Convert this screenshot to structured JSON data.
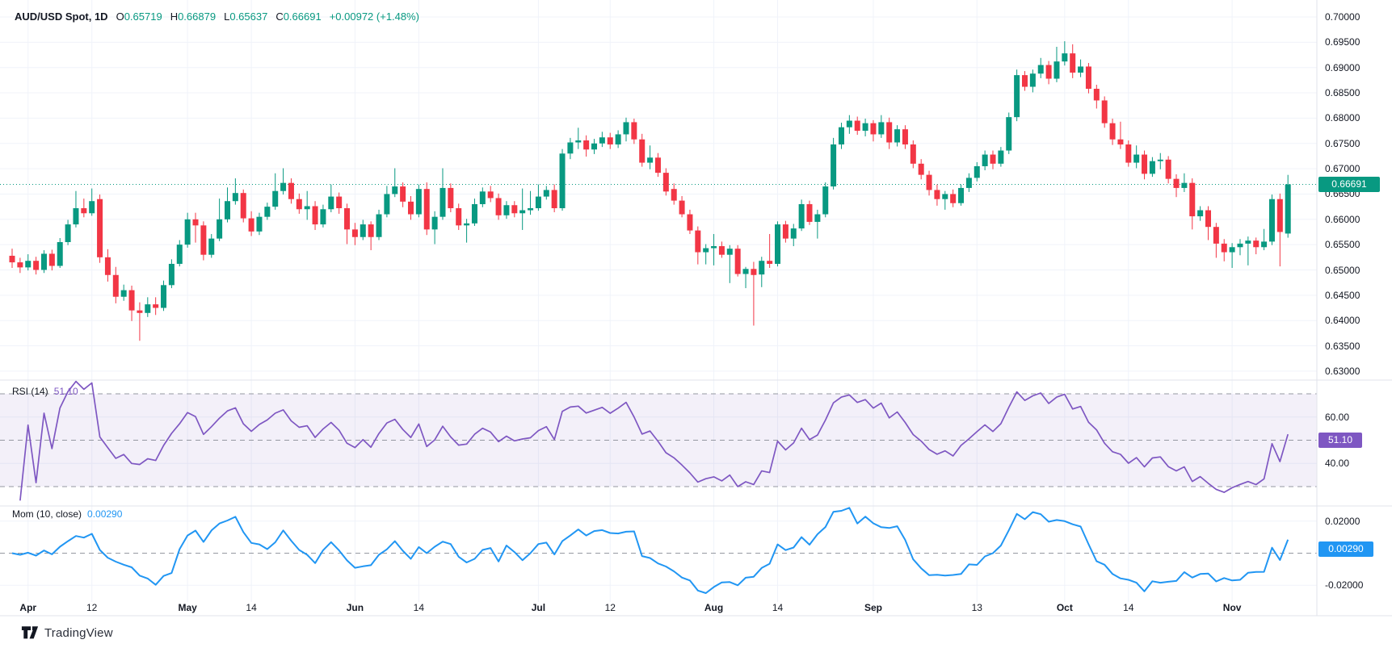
{
  "header": {
    "symbol": "AUD/USD Spot, 1D",
    "o_label": "O",
    "o_value": "0.65719",
    "h_label": "H",
    "h_value": "0.66879",
    "l_label": "L",
    "l_value": "0.65637",
    "c_label": "C",
    "c_value": "0.66691",
    "change": "+0.00972 (+1.48%)"
  },
  "panes": {
    "rsi": {
      "label": "RSI (14)",
      "value": "51.10",
      "badge": "51.10",
      "axis_labels": [
        "60.00",
        "40.00"
      ],
      "axis_values": [
        60,
        40
      ],
      "level_lines": [
        70,
        50,
        30
      ]
    },
    "mom": {
      "label": "Mom (10, close)",
      "value": "0.00290",
      "badge": "0.00290",
      "axis_labels": [
        "0.02000",
        "0.00000",
        "-0.02000"
      ],
      "axis_values": [
        0.02,
        0,
        -0.02
      ],
      "level_lines": [
        0
      ]
    }
  },
  "price_axis": {
    "labels": [
      "0.70000",
      "0.69500",
      "0.69000",
      "0.68500",
      "0.68000",
      "0.67500",
      "0.67000",
      "0.66500",
      "0.66000",
      "0.65500",
      "0.65000",
      "0.64500",
      "0.64000",
      "0.63500",
      "0.63000"
    ],
    "last_price": "0.66691"
  },
  "time_axis": {
    "ticks": [
      {
        "label": "Apr",
        "i": 2,
        "major": true
      },
      {
        "label": "12",
        "i": 10,
        "major": false
      },
      {
        "label": "May",
        "i": 22,
        "major": true
      },
      {
        "label": "14",
        "i": 30,
        "major": false
      },
      {
        "label": "Jun",
        "i": 43,
        "major": true
      },
      {
        "label": "14",
        "i": 51,
        "major": false
      },
      {
        "label": "Jul",
        "i": 66,
        "major": true
      },
      {
        "label": "12",
        "i": 75,
        "major": false
      },
      {
        "label": "Aug",
        "i": 88,
        "major": true
      },
      {
        "label": "14",
        "i": 96,
        "major": false
      },
      {
        "label": "Sep",
        "i": 108,
        "major": true
      },
      {
        "label": "13",
        "i": 121,
        "major": false
      },
      {
        "label": "Oct",
        "i": 132,
        "major": true
      },
      {
        "label": "14",
        "i": 140,
        "major": false
      },
      {
        "label": "Nov",
        "i": 153,
        "major": true
      }
    ]
  },
  "branding": {
    "name": "TradingView"
  },
  "colors": {
    "up": "#089981",
    "down": "#F23645",
    "rsi": "#7E57C2",
    "mom": "#2196F3",
    "last_price": "#089981",
    "text": "#131722",
    "grid": "#f0f3fa",
    "separator": "#e0e3eb",
    "dashed": "#9598a1",
    "rsi_band": "rgba(126,87,194,0.09)"
  },
  "chart_data": {
    "type": "candlestick",
    "title": "AUD/USD Spot, 1D",
    "price_range": [
      0.63,
      0.7
    ],
    "grid_step": 0.005,
    "last_close": 0.66691,
    "indicators": [
      {
        "name": "RSI",
        "period": 14,
        "last": 51.1,
        "levels": [
          70,
          50,
          30
        ],
        "range": [
          30,
          70
        ]
      },
      {
        "name": "Momentum",
        "period": 10,
        "source": "close",
        "last": 0.0029,
        "range": [
          -0.02,
          0.02
        ]
      }
    ],
    "candles": [
      [
        0.6528,
        0.6542,
        0.6504,
        0.6515
      ],
      [
        0.6515,
        0.6524,
        0.6494,
        0.6505
      ],
      [
        0.6505,
        0.6531,
        0.6499,
        0.6518
      ],
      [
        0.6518,
        0.6526,
        0.6491,
        0.65
      ],
      [
        0.65,
        0.6539,
        0.6494,
        0.6532
      ],
      [
        0.6532,
        0.654,
        0.6499,
        0.6508
      ],
      [
        0.6508,
        0.6563,
        0.6504,
        0.6555
      ],
      [
        0.6555,
        0.6599,
        0.6549,
        0.659
      ],
      [
        0.659,
        0.6656,
        0.6584,
        0.6622
      ],
      [
        0.6622,
        0.6641,
        0.6604,
        0.6612
      ],
      [
        0.6612,
        0.6661,
        0.6607,
        0.6636
      ],
      [
        0.664,
        0.6649,
        0.6514,
        0.6525
      ],
      [
        0.6525,
        0.6541,
        0.6477,
        0.649
      ],
      [
        0.649,
        0.6506,
        0.6434,
        0.6447
      ],
      [
        0.6447,
        0.6471,
        0.6439,
        0.646
      ],
      [
        0.646,
        0.6469,
        0.6399,
        0.642
      ],
      [
        0.642,
        0.6436,
        0.636,
        0.6415
      ],
      [
        0.6415,
        0.6446,
        0.6407,
        0.6432
      ],
      [
        0.6432,
        0.6446,
        0.6411,
        0.6425
      ],
      [
        0.6425,
        0.6479,
        0.6419,
        0.647
      ],
      [
        0.647,
        0.6521,
        0.6464,
        0.6512
      ],
      [
        0.6512,
        0.6559,
        0.6507,
        0.655
      ],
      [
        0.655,
        0.6613,
        0.6544,
        0.66
      ],
      [
        0.66,
        0.6613,
        0.6554,
        0.6588
      ],
      [
        0.6588,
        0.6596,
        0.6519,
        0.653
      ],
      [
        0.653,
        0.6571,
        0.6524,
        0.6562
      ],
      [
        0.6562,
        0.6641,
        0.6557,
        0.66
      ],
      [
        0.66,
        0.6663,
        0.6594,
        0.6636
      ],
      [
        0.6636,
        0.6681,
        0.6629,
        0.6652
      ],
      [
        0.6652,
        0.6659,
        0.6594,
        0.6602
      ],
      [
        0.6602,
        0.6616,
        0.6567,
        0.6576
      ],
      [
        0.6576,
        0.6613,
        0.6569,
        0.6605
      ],
      [
        0.6605,
        0.6633,
        0.6599,
        0.6625
      ],
      [
        0.6625,
        0.6691,
        0.6619,
        0.6656
      ],
      [
        0.6656,
        0.6701,
        0.6649,
        0.6672
      ],
      [
        0.6672,
        0.6681,
        0.6631,
        0.664
      ],
      [
        0.664,
        0.6651,
        0.6611,
        0.662
      ],
      [
        0.662,
        0.6656,
        0.6599,
        0.6626
      ],
      [
        0.6626,
        0.6636,
        0.6579,
        0.659
      ],
      [
        0.659,
        0.6629,
        0.6584,
        0.662
      ],
      [
        0.662,
        0.6669,
        0.6614,
        0.6645
      ],
      [
        0.6645,
        0.6653,
        0.6611,
        0.6622
      ],
      [
        0.6622,
        0.6631,
        0.6551,
        0.658
      ],
      [
        0.658,
        0.6593,
        0.6549,
        0.6565
      ],
      [
        0.6565,
        0.6599,
        0.6559,
        0.659
      ],
      [
        0.659,
        0.6596,
        0.6539,
        0.6565
      ],
      [
        0.6565,
        0.6619,
        0.6559,
        0.661
      ],
      [
        0.661,
        0.6666,
        0.6604,
        0.665
      ],
      [
        0.665,
        0.6701,
        0.6644,
        0.6665
      ],
      [
        0.6665,
        0.6673,
        0.6624,
        0.6635
      ],
      [
        0.6635,
        0.6646,
        0.6599,
        0.661
      ],
      [
        0.661,
        0.6669,
        0.6604,
        0.666
      ],
      [
        0.666,
        0.6673,
        0.6569,
        0.658
      ],
      [
        0.658,
        0.6616,
        0.6551,
        0.6605
      ],
      [
        0.6605,
        0.6701,
        0.6599,
        0.6662
      ],
      [
        0.6662,
        0.6671,
        0.6614,
        0.6622
      ],
      [
        0.6622,
        0.6631,
        0.6579,
        0.6588
      ],
      [
        0.6588,
        0.6601,
        0.6554,
        0.6592
      ],
      [
        0.6592,
        0.6641,
        0.6587,
        0.663
      ],
      [
        0.663,
        0.6663,
        0.6624,
        0.6655
      ],
      [
        0.6655,
        0.6666,
        0.6634,
        0.6642
      ],
      [
        0.6642,
        0.6651,
        0.6599,
        0.6608
      ],
      [
        0.6608,
        0.6636,
        0.6601,
        0.6628
      ],
      [
        0.6628,
        0.6636,
        0.6604,
        0.6612
      ],
      [
        0.6612,
        0.6661,
        0.6579,
        0.6618
      ],
      [
        0.6618,
        0.6656,
        0.6609,
        0.6622
      ],
      [
        0.6622,
        0.6669,
        0.6617,
        0.6645
      ],
      [
        0.6645,
        0.6666,
        0.6639,
        0.6658
      ],
      [
        0.6658,
        0.6669,
        0.6614,
        0.6622
      ],
      [
        0.6622,
        0.6739,
        0.6617,
        0.673
      ],
      [
        0.673,
        0.6761,
        0.6719,
        0.6752
      ],
      [
        0.6752,
        0.6781,
        0.6739,
        0.6756
      ],
      [
        0.6756,
        0.6766,
        0.6724,
        0.6738
      ],
      [
        0.6738,
        0.6759,
        0.6729,
        0.675
      ],
      [
        0.675,
        0.6773,
        0.6743,
        0.6762
      ],
      [
        0.6762,
        0.6771,
        0.6739,
        0.6748
      ],
      [
        0.6748,
        0.6776,
        0.6741,
        0.6768
      ],
      [
        0.6768,
        0.6801,
        0.6754,
        0.6792
      ],
      [
        0.6792,
        0.6799,
        0.6749,
        0.6758
      ],
      [
        0.6758,
        0.6769,
        0.6704,
        0.6712
      ],
      [
        0.6712,
        0.6746,
        0.6699,
        0.6722
      ],
      [
        0.6722,
        0.6731,
        0.6684,
        0.6692
      ],
      [
        0.6692,
        0.6701,
        0.6647,
        0.6655
      ],
      [
        0.666,
        0.6671,
        0.6629,
        0.6637
      ],
      [
        0.6637,
        0.6646,
        0.6604,
        0.661
      ],
      [
        0.661,
        0.6619,
        0.6571,
        0.6578
      ],
      [
        0.6578,
        0.6586,
        0.6511,
        0.6535
      ],
      [
        0.6535,
        0.6551,
        0.6511,
        0.6543
      ],
      [
        0.6543,
        0.6571,
        0.6509,
        0.6547
      ],
      [
        0.6547,
        0.6556,
        0.6524,
        0.653
      ],
      [
        0.653,
        0.6549,
        0.6474,
        0.6542
      ],
      [
        0.6542,
        0.6549,
        0.6487,
        0.6492
      ],
      [
        0.6492,
        0.6506,
        0.6464,
        0.6502
      ],
      [
        0.6502,
        0.6516,
        0.639,
        0.649
      ],
      [
        0.6491,
        0.6526,
        0.6466,
        0.6518
      ],
      [
        0.6518,
        0.6571,
        0.6504,
        0.6512
      ],
      [
        0.6512,
        0.6596,
        0.6507,
        0.659
      ],
      [
        0.659,
        0.6597,
        0.6554,
        0.6562
      ],
      [
        0.6562,
        0.6591,
        0.6547,
        0.6582
      ],
      [
        0.6582,
        0.6639,
        0.6577,
        0.663
      ],
      [
        0.663,
        0.6637,
        0.6589,
        0.6595
      ],
      [
        0.6595,
        0.6619,
        0.6562,
        0.661
      ],
      [
        0.661,
        0.6673,
        0.6604,
        0.6665
      ],
      [
        0.6665,
        0.6761,
        0.6659,
        0.6748
      ],
      [
        0.6748,
        0.6791,
        0.6739,
        0.6782
      ],
      [
        0.6782,
        0.6806,
        0.6769,
        0.6795
      ],
      [
        0.6795,
        0.6803,
        0.6767,
        0.6775
      ],
      [
        0.6775,
        0.6799,
        0.6764,
        0.679
      ],
      [
        0.679,
        0.6796,
        0.6754,
        0.6768
      ],
      [
        0.6768,
        0.6806,
        0.6761,
        0.6792
      ],
      [
        0.6792,
        0.6801,
        0.6739,
        0.6752
      ],
      [
        0.6752,
        0.6786,
        0.6744,
        0.6778
      ],
      [
        0.6778,
        0.6786,
        0.6739,
        0.6748
      ],
      [
        0.6748,
        0.6756,
        0.6701,
        0.671
      ],
      [
        0.671,
        0.6719,
        0.6679,
        0.6688
      ],
      [
        0.6688,
        0.6696,
        0.6647,
        0.6658
      ],
      [
        0.6658,
        0.6669,
        0.6627,
        0.664
      ],
      [
        0.664,
        0.6656,
        0.6619,
        0.665
      ],
      [
        0.665,
        0.6659,
        0.6624,
        0.6632
      ],
      [
        0.6632,
        0.6669,
        0.6627,
        0.6662
      ],
      [
        0.6662,
        0.6691,
        0.6654,
        0.6682
      ],
      [
        0.6682,
        0.6713,
        0.6675,
        0.6705
      ],
      [
        0.6705,
        0.6736,
        0.6697,
        0.6728
      ],
      [
        0.6728,
        0.6736,
        0.6699,
        0.671
      ],
      [
        0.671,
        0.6743,
        0.6704,
        0.6736
      ],
      [
        0.6736,
        0.6811,
        0.6729,
        0.6802
      ],
      [
        0.6802,
        0.6896,
        0.6794,
        0.6885
      ],
      [
        0.6885,
        0.6893,
        0.6854,
        0.6862
      ],
      [
        0.6862,
        0.6896,
        0.6851,
        0.6888
      ],
      [
        0.6888,
        0.6919,
        0.6879,
        0.6905
      ],
      [
        0.6905,
        0.6913,
        0.6867,
        0.6878
      ],
      [
        0.6878,
        0.6941,
        0.6871,
        0.6912
      ],
      [
        0.6912,
        0.6952,
        0.6904,
        0.6928
      ],
      [
        0.6928,
        0.6946,
        0.6879,
        0.689
      ],
      [
        0.689,
        0.6916,
        0.6881,
        0.6902
      ],
      [
        0.6902,
        0.6909,
        0.6849,
        0.6858
      ],
      [
        0.6858,
        0.6866,
        0.6819,
        0.6835
      ],
      [
        0.6835,
        0.6843,
        0.6781,
        0.679
      ],
      [
        0.679,
        0.6799,
        0.6747,
        0.6758
      ],
      [
        0.6758,
        0.6793,
        0.6739,
        0.6748
      ],
      [
        0.6748,
        0.6756,
        0.6704,
        0.6712
      ],
      [
        0.6712,
        0.6746,
        0.6701,
        0.6728
      ],
      [
        0.6728,
        0.6736,
        0.6679,
        0.669
      ],
      [
        0.669,
        0.6723,
        0.6684,
        0.6715
      ],
      [
        0.6715,
        0.6731,
        0.6699,
        0.6718
      ],
      [
        0.6718,
        0.6725,
        0.6671,
        0.668
      ],
      [
        0.668,
        0.6689,
        0.6644,
        0.6662
      ],
      [
        0.6662,
        0.6691,
        0.6654,
        0.6672
      ],
      [
        0.6672,
        0.6681,
        0.658,
        0.6606
      ],
      [
        0.6606,
        0.6626,
        0.6597,
        0.6618
      ],
      [
        0.6618,
        0.6626,
        0.6559,
        0.6585
      ],
      [
        0.6585,
        0.6593,
        0.6524,
        0.6552
      ],
      [
        0.6552,
        0.6561,
        0.6517,
        0.6535
      ],
      [
        0.6535,
        0.6553,
        0.6504,
        0.6545
      ],
      [
        0.6545,
        0.6561,
        0.6529,
        0.6552
      ],
      [
        0.6552,
        0.6566,
        0.6509,
        0.6558
      ],
      [
        0.6558,
        0.6564,
        0.6531,
        0.6545
      ],
      [
        0.6545,
        0.6581,
        0.6539,
        0.6556
      ],
      [
        0.6556,
        0.6649,
        0.6549,
        0.664
      ],
      [
        0.664,
        0.6651,
        0.6507,
        0.6575
      ],
      [
        0.65719,
        0.66879,
        0.65637,
        0.66691
      ]
    ]
  }
}
